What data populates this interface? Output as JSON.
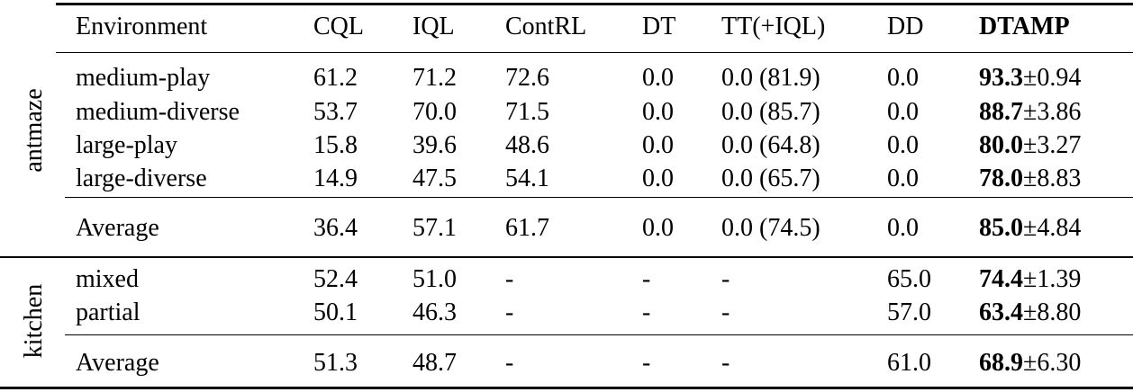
{
  "header": [
    "Environment",
    "CQL",
    "IQL",
    "ContRL",
    "DT",
    "TT(+IQL)",
    "DD",
    "DTAMP"
  ],
  "groups": [
    {
      "label": "antmaze",
      "rows": [
        {
          "env": "medium-play",
          "cells": [
            "61.2",
            "71.2",
            "72.6",
            "0.0",
            "0.0 (81.9)",
            "0.0"
          ],
          "best": "93.3",
          "std": "±0.94"
        },
        {
          "env": "medium-diverse",
          "cells": [
            "53.7",
            "70.0",
            "71.5",
            "0.0",
            "0.0 (85.7)",
            "0.0"
          ],
          "best": "88.7",
          "std": "±3.86"
        },
        {
          "env": "large-play",
          "cells": [
            "15.8",
            "39.6",
            "48.6",
            "0.0",
            "0.0 (64.8)",
            "0.0"
          ],
          "best": "80.0",
          "std": "±3.27"
        },
        {
          "env": "large-diverse",
          "cells": [
            "14.9",
            "47.5",
            "54.1",
            "0.0",
            "0.0 (65.7)",
            "0.0"
          ],
          "best": "78.0",
          "std": "±8.83"
        }
      ],
      "average": {
        "env": "Average",
        "cells": [
          "36.4",
          "57.1",
          "61.7",
          "0.0",
          "0.0 (74.5)",
          "0.0"
        ],
        "best": "85.0",
        "std": "±4.84"
      }
    },
    {
      "label": "kitchen",
      "rows": [
        {
          "env": "mixed",
          "cells": [
            "52.4",
            "51.0",
            "-",
            "-",
            "-",
            "65.0"
          ],
          "best": "74.4",
          "std": "±1.39"
        },
        {
          "env": "partial",
          "cells": [
            "50.1",
            "46.3",
            "-",
            "-",
            "-",
            "57.0"
          ],
          "best": "63.4",
          "std": "±8.80"
        }
      ],
      "average": {
        "env": "Average",
        "cells": [
          "51.3",
          "48.7",
          "-",
          "-",
          "-",
          "61.0"
        ],
        "best": "68.9",
        "std": "±6.30"
      }
    }
  ]
}
